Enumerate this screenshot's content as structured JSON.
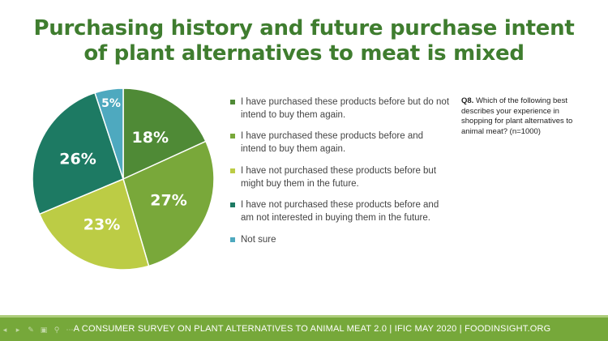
{
  "slide": {
    "title_line1": "Purchasing history and future purchase intent",
    "title_line2": "of plant alternatives to meat is mixed",
    "question_number": "Q8.",
    "question_text": "Which of the following best describes your experience in shopping for plant alternatives to animal meat? (n=1000)",
    "footer": "A CONSUMER SURVEY ON PLANT ALTERNATIVES TO ANIMAL MEAT 2.0 | IFIC MAY 2020 | FOODINSIGHT.ORG"
  },
  "controls": [
    {
      "icon": "previous-icon",
      "glyph": "◂"
    },
    {
      "icon": "play-icon",
      "glyph": "▸"
    },
    {
      "icon": "pen-icon",
      "glyph": "✎"
    },
    {
      "icon": "slides-icon",
      "glyph": "▣"
    },
    {
      "icon": "search-icon",
      "glyph": "⚲"
    },
    {
      "icon": "more-icon",
      "glyph": "⋯"
    }
  ],
  "chart_data": {
    "type": "pie",
    "unit": "%",
    "legend_position": "right",
    "slices": [
      {
        "label": "I have purchased these products before but do not intend to buy them again.",
        "value": 18,
        "color": "#4f8a36"
      },
      {
        "label": "I have purchased these products before and intend to buy them again.",
        "value": 27,
        "color": "#79a83a"
      },
      {
        "label": "I have not purchased these products before but might buy them in the future.",
        "value": 23,
        "color": "#bccc45"
      },
      {
        "label": "I have not purchased these products before and am not interested in buying them in the future.",
        "value": 26,
        "color": "#1d7a63"
      },
      {
        "label": "Not sure",
        "value": 5,
        "color": "#4ea9bf"
      }
    ]
  }
}
